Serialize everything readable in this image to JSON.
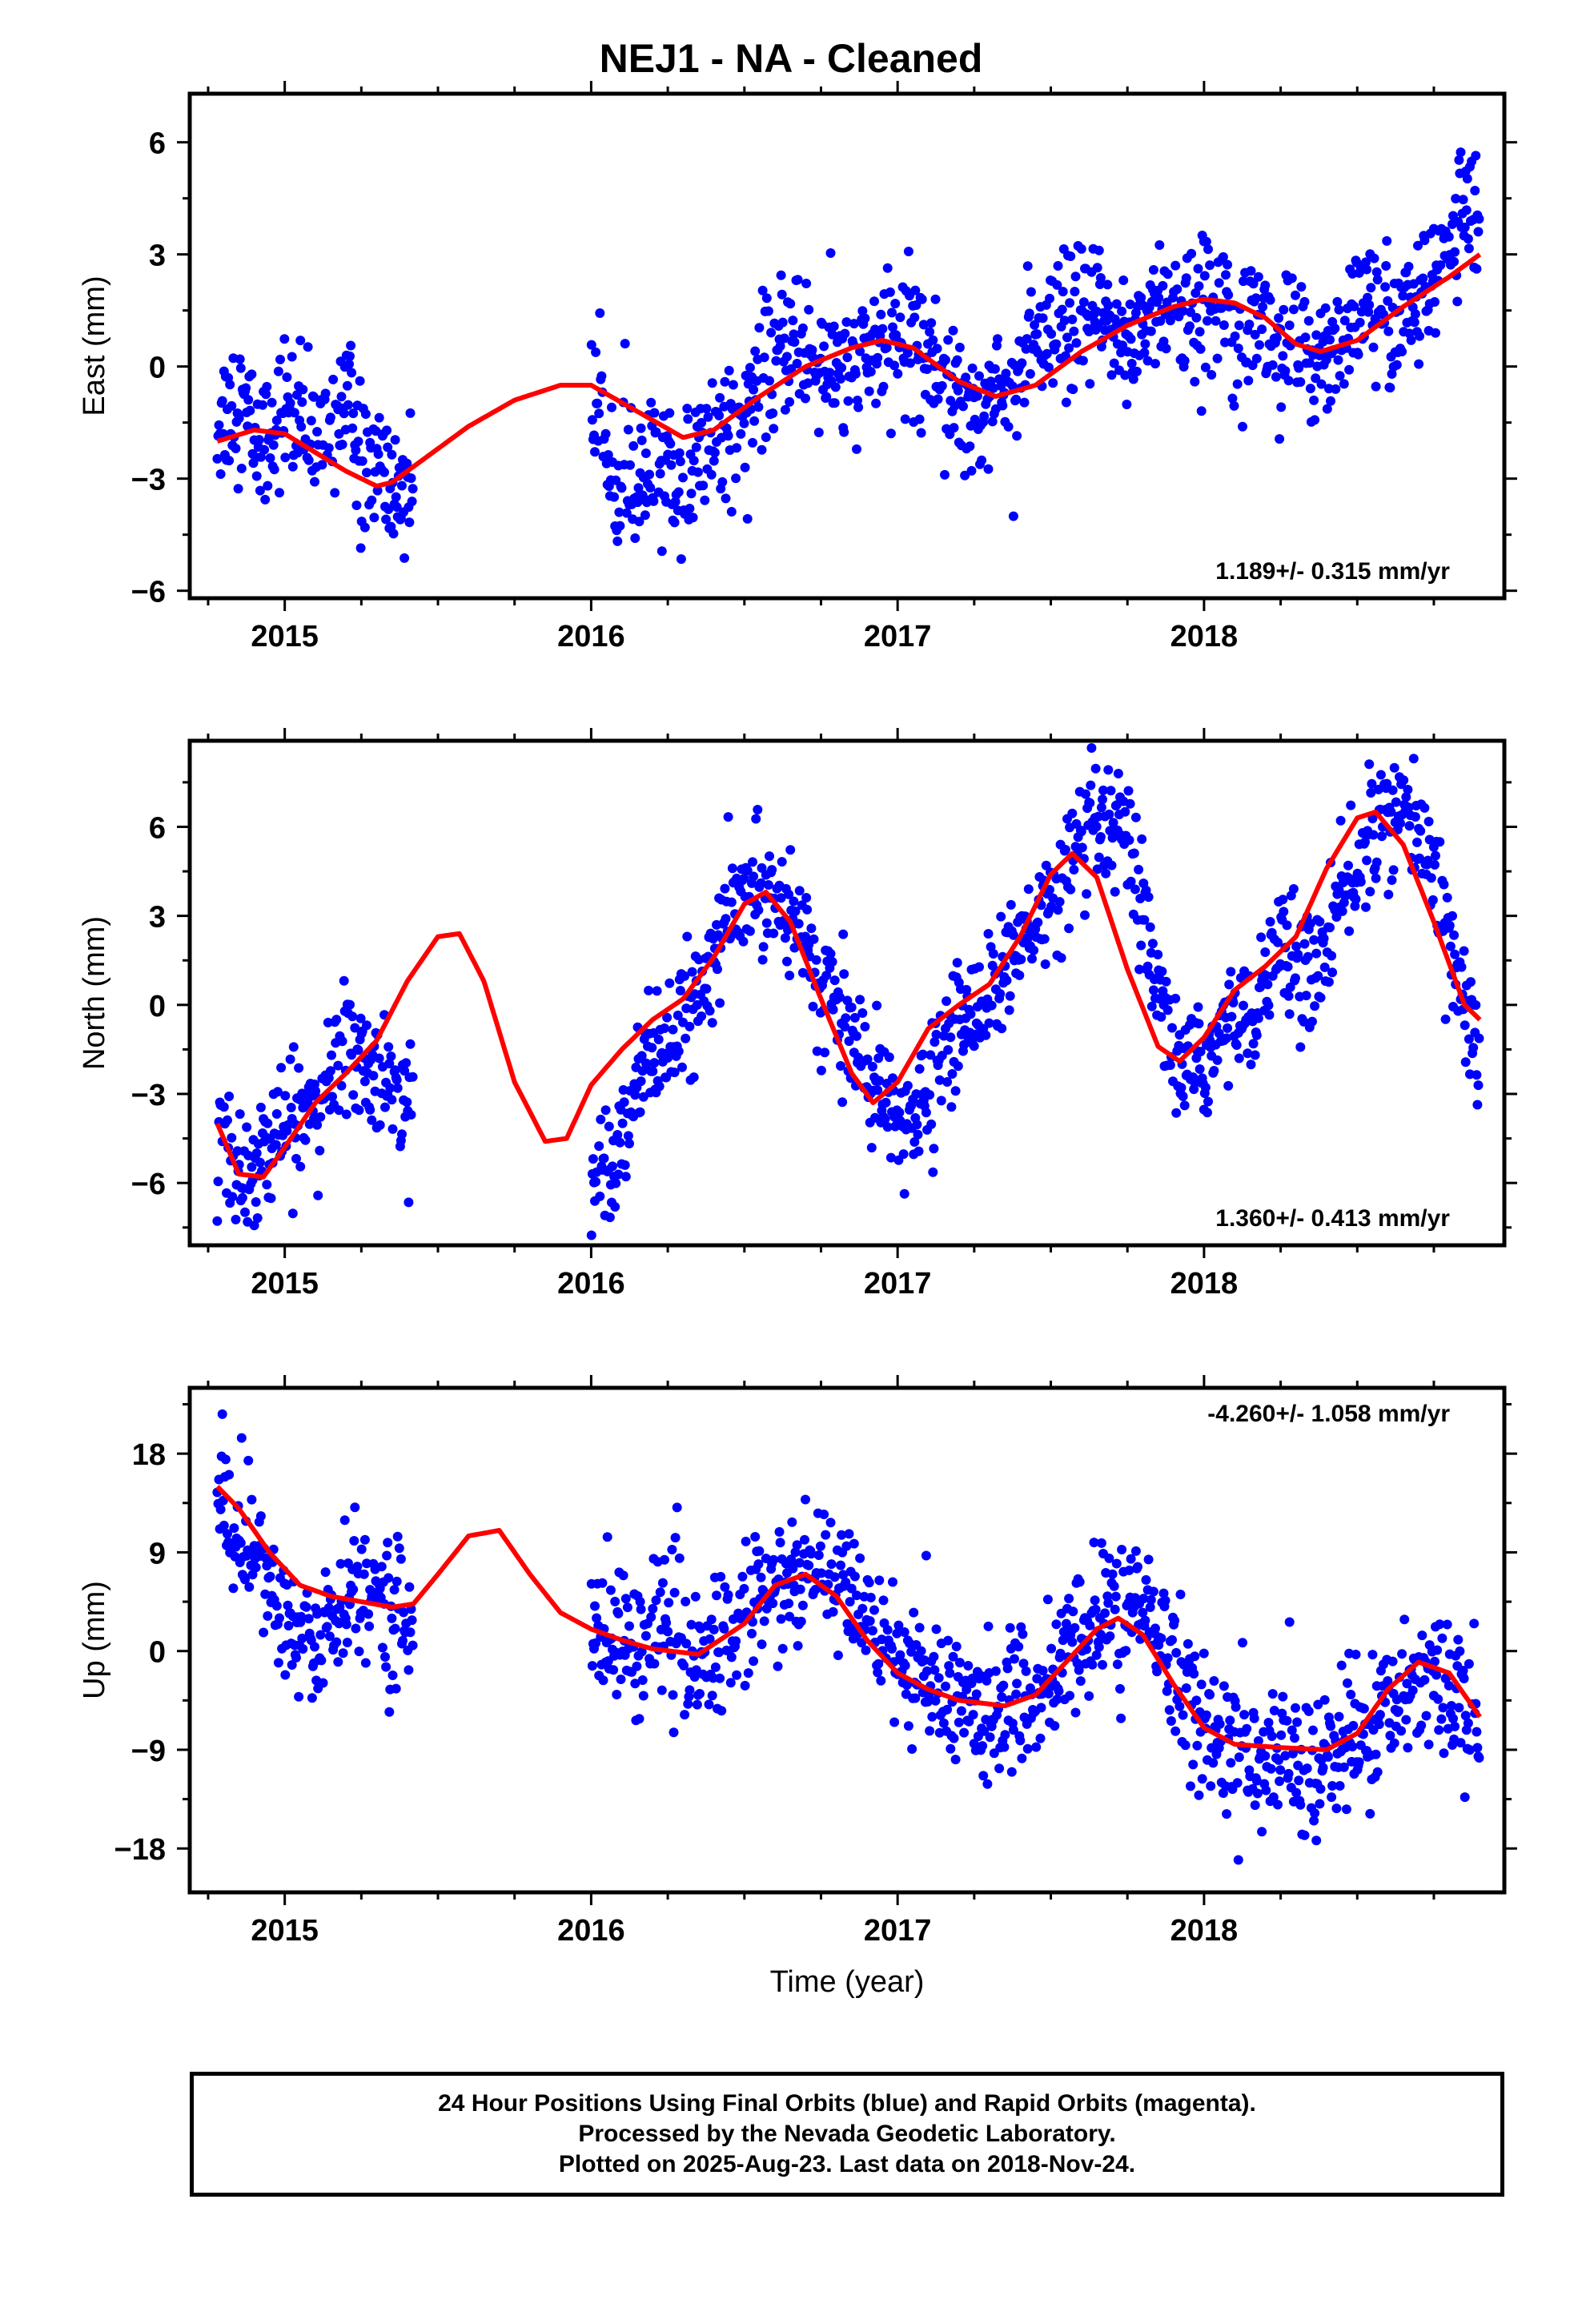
{
  "title": "NEJ1  - NA - Cleaned",
  "footer": {
    "line1": "24 Hour Positions Using Final Orbits (blue) and Rapid Orbits (magenta).",
    "line2": "Processed by the Nevada Geodetic Laboratory.",
    "line3": "Plotted on 2025-Aug-23. Last data on 2018-Nov-24."
  },
  "colors": {
    "data_points": "#0000ff",
    "model_fit": "#ff0000",
    "frame": "#000000"
  },
  "chart_data": [
    {
      "type": "scatter",
      "panel": "east",
      "ylabel": "East (mm)",
      "xlabel": "",
      "xlim": [
        2014.69,
        2018.98
      ],
      "ylim": [
        -6.2,
        7.3
      ],
      "xticks": [
        2015,
        2016,
        2017,
        2018
      ],
      "yticks": [
        -6,
        -3,
        0,
        3,
        6
      ],
      "ytick_labels": [
        "−6",
        "−3",
        "0",
        "3",
        "6"
      ],
      "rate_label": "1.189+/- 0.315 mm/yr",
      "data_gap": [
        2015.42,
        2016.0
      ],
      "series": [
        {
          "kind": "observations",
          "style": "points",
          "x": [
            2014.78,
            2014.85,
            2014.92,
            2015.0,
            2015.08,
            2015.15,
            2015.2,
            2015.25,
            2015.3,
            2015.35,
            2015.4,
            2016.02,
            2016.1,
            2016.15,
            2016.22,
            2016.3,
            2016.38,
            2016.45,
            2016.55,
            2016.65,
            2016.75,
            2016.85,
            2016.95,
            2017.05,
            2017.15,
            2017.25,
            2017.35,
            2017.45,
            2017.55,
            2017.65,
            2017.75,
            2017.85,
            2017.95,
            2018.05,
            2018.15,
            2018.25,
            2018.35,
            2018.45,
            2018.55,
            2018.65,
            2018.75,
            2018.85,
            2018.9
          ],
          "y": [
            -1.5,
            -0.8,
            -2.2,
            -1.0,
            -2.0,
            -1.6,
            -0.5,
            -2.8,
            -2.4,
            -3.5,
            -3.0,
            -1.2,
            -2.8,
            -3.5,
            -2.6,
            -3.2,
            -2.0,
            -1.5,
            -0.6,
            0.8,
            0.1,
            -0.3,
            0.6,
            0.9,
            -0.2,
            -1.1,
            -0.5,
            0.4,
            1.0,
            1.4,
            0.6,
            1.8,
            1.2,
            2.0,
            1.4,
            0.6,
            0.2,
            0.9,
            1.6,
            1.1,
            2.4,
            4.5,
            4.0
          ],
          "scatter": 1.1
        },
        {
          "kind": "model",
          "style": "line",
          "x": [
            2014.78,
            2014.9,
            2015.0,
            2015.1,
            2015.2,
            2015.3,
            2015.35,
            2015.45,
            2015.6,
            2015.75,
            2015.9,
            2016.0,
            2016.15,
            2016.3,
            2016.4,
            2016.55,
            2016.7,
            2016.85,
            2016.95,
            2017.05,
            2017.2,
            2017.32,
            2017.45,
            2017.6,
            2017.75,
            2017.9,
            2018.0,
            2018.1,
            2018.2,
            2018.3,
            2018.38,
            2018.5,
            2018.65,
            2018.8,
            2018.9
          ],
          "y": [
            -2.0,
            -1.7,
            -1.8,
            -2.3,
            -2.8,
            -3.2,
            -3.1,
            -2.5,
            -1.6,
            -0.9,
            -0.5,
            -0.5,
            -1.2,
            -1.9,
            -1.7,
            -0.8,
            0.0,
            0.5,
            0.7,
            0.5,
            -0.4,
            -0.8,
            -0.5,
            0.4,
            1.1,
            1.6,
            1.8,
            1.7,
            1.3,
            0.6,
            0.4,
            0.7,
            1.6,
            2.4,
            3.0
          ]
        }
      ]
    },
    {
      "type": "scatter",
      "panel": "north",
      "ylabel": "North (mm)",
      "xlabel": "",
      "xlim": [
        2014.69,
        2018.98
      ],
      "ylim": [
        -8.1,
        8.9
      ],
      "xticks": [
        2015,
        2016,
        2017,
        2018
      ],
      "yticks": [
        -6,
        -3,
        0,
        3,
        6
      ],
      "ytick_labels": [
        "−6",
        "−3",
        "0",
        "3",
        "6"
      ],
      "rate_label": "1.360+/- 0.413 mm/yr",
      "data_gap": [
        2015.42,
        2016.0
      ],
      "series": [
        {
          "kind": "observations",
          "style": "points",
          "x": [
            2014.78,
            2014.85,
            2014.92,
            2015.0,
            2015.08,
            2015.15,
            2015.2,
            2015.25,
            2015.3,
            2015.35,
            2015.4,
            2016.02,
            2016.1,
            2016.15,
            2016.22,
            2016.3,
            2016.38,
            2016.45,
            2016.55,
            2016.65,
            2016.75,
            2016.85,
            2016.95,
            2017.05,
            2017.15,
            2017.25,
            2017.35,
            2017.45,
            2017.55,
            2017.65,
            2017.75,
            2017.85,
            2017.95,
            2018.05,
            2018.15,
            2018.25,
            2018.35,
            2018.45,
            2018.55,
            2018.65,
            2018.75,
            2018.85,
            2018.9
          ],
          "y": [
            -5.0,
            -5.5,
            -5.2,
            -4.2,
            -3.5,
            -2.8,
            -1.0,
            -1.6,
            -2.5,
            -3.2,
            -2.8,
            -5.8,
            -4.2,
            -2.5,
            -1.5,
            -0.8,
            1.0,
            3.0,
            4.0,
            3.5,
            0.5,
            -1.0,
            -3.5,
            -4.2,
            -1.5,
            0.0,
            1.2,
            2.5,
            4.5,
            6.0,
            5.5,
            0.0,
            -2.5,
            -1.2,
            0.0,
            1.8,
            1.0,
            3.5,
            5.8,
            6.8,
            4.8,
            0.0,
            -2.0
          ],
          "scatter": 1.2
        },
        {
          "kind": "model",
          "style": "line",
          "x": [
            2014.78,
            2014.85,
            2014.93,
            2015.0,
            2015.1,
            2015.2,
            2015.3,
            2015.4,
            2015.5,
            2015.57,
            2015.65,
            2015.75,
            2015.85,
            2015.92,
            2016.0,
            2016.1,
            2016.2,
            2016.3,
            2016.4,
            2016.5,
            2016.57,
            2016.65,
            2016.75,
            2016.85,
            2016.92,
            2017.0,
            2017.1,
            2017.2,
            2017.3,
            2017.4,
            2017.5,
            2017.57,
            2017.65,
            2017.75,
            2017.85,
            2017.92,
            2018.0,
            2018.1,
            2018.2,
            2018.3,
            2018.4,
            2018.5,
            2018.56,
            2018.65,
            2018.75,
            2018.85,
            2018.9
          ],
          "y": [
            -4.0,
            -5.7,
            -5.8,
            -4.8,
            -3.3,
            -2.3,
            -1.2,
            0.8,
            2.3,
            2.4,
            0.8,
            -2.6,
            -4.6,
            -4.5,
            -2.7,
            -1.5,
            -0.5,
            0.2,
            1.6,
            3.4,
            3.8,
            2.8,
            0.2,
            -2.3,
            -3.3,
            -2.6,
            -0.8,
            0.0,
            0.7,
            2.3,
            4.4,
            5.1,
            4.3,
            1.2,
            -1.4,
            -1.9,
            -1.1,
            0.5,
            1.3,
            2.3,
            4.6,
            6.3,
            6.5,
            5.4,
            2.8,
            0.0,
            -0.5
          ]
        }
      ]
    },
    {
      "type": "scatter",
      "panel": "up",
      "ylabel": "Up (mm)",
      "xlabel": "Time (year)",
      "xlim": [
        2014.69,
        2018.98
      ],
      "ylim": [
        -22.0,
        24.0
      ],
      "xticks": [
        2015,
        2016,
        2017,
        2018
      ],
      "yticks": [
        -18,
        -9,
        0,
        9,
        18
      ],
      "ytick_labels": [
        "−18",
        "−9",
        "0",
        "9",
        "18"
      ],
      "rate_label": "-4.260+/- 1.058 mm/yr",
      "data_gap": [
        2015.42,
        2016.0
      ],
      "series": [
        {
          "kind": "observations",
          "style": "points",
          "x": [
            2014.78,
            2014.85,
            2014.92,
            2015.0,
            2015.08,
            2015.15,
            2015.2,
            2015.25,
            2015.3,
            2015.35,
            2015.4,
            2016.02,
            2016.1,
            2016.15,
            2016.22,
            2016.3,
            2016.38,
            2016.45,
            2016.55,
            2016.65,
            2016.75,
            2016.85,
            2016.95,
            2017.05,
            2017.15,
            2017.25,
            2017.35,
            2017.45,
            2017.55,
            2017.65,
            2017.75,
            2017.85,
            2017.95,
            2018.05,
            2018.15,
            2018.25,
            2018.35,
            2018.45,
            2018.55,
            2018.65,
            2018.75,
            2018.85,
            2018.9
          ],
          "y": [
            14.0,
            11.0,
            8.0,
            2.0,
            0.0,
            3.0,
            4.0,
            6.0,
            5.0,
            4.0,
            3.0,
            2.0,
            1.0,
            0.0,
            3.0,
            0.0,
            -1.0,
            2.0,
            5.0,
            6.0,
            7.0,
            5.0,
            2.0,
            -2.0,
            -4.0,
            -5.0,
            -6.0,
            -4.0,
            -1.0,
            3.0,
            4.0,
            2.0,
            -4.0,
            -8.0,
            -10.0,
            -9.0,
            -11.0,
            -9.0,
            -7.0,
            -4.0,
            -1.0,
            -4.0,
            -8.0
          ],
          "scatter": 3.8
        },
        {
          "kind": "model",
          "style": "line",
          "x": [
            2014.78,
            2014.85,
            2014.95,
            2015.05,
            2015.15,
            2015.25,
            2015.35,
            2015.42,
            2015.5,
            2015.6,
            2015.7,
            2015.8,
            2015.9,
            2016.0,
            2016.1,
            2016.2,
            2016.35,
            2016.5,
            2016.6,
            2016.7,
            2016.8,
            2016.9,
            2017.0,
            2017.1,
            2017.2,
            2017.35,
            2017.45,
            2017.55,
            2017.65,
            2017.72,
            2017.8,
            2017.9,
            2018.0,
            2018.1,
            2018.25,
            2018.4,
            2018.5,
            2018.6,
            2018.7,
            2018.8,
            2018.9
          ],
          "y": [
            15.0,
            13.0,
            9.0,
            6.0,
            5.0,
            4.5,
            4.0,
            4.3,
            7.0,
            10.5,
            11.0,
            7.0,
            3.5,
            2.0,
            1.0,
            0.2,
            -0.3,
            2.5,
            6.0,
            7.0,
            5.0,
            1.0,
            -2.0,
            -3.5,
            -4.5,
            -5.0,
            -4.0,
            -1.0,
            2.0,
            3.0,
            1.5,
            -3.0,
            -7.0,
            -8.5,
            -8.8,
            -9.0,
            -7.5,
            -3.5,
            -1.0,
            -2.0,
            -6.0
          ]
        }
      ]
    }
  ]
}
